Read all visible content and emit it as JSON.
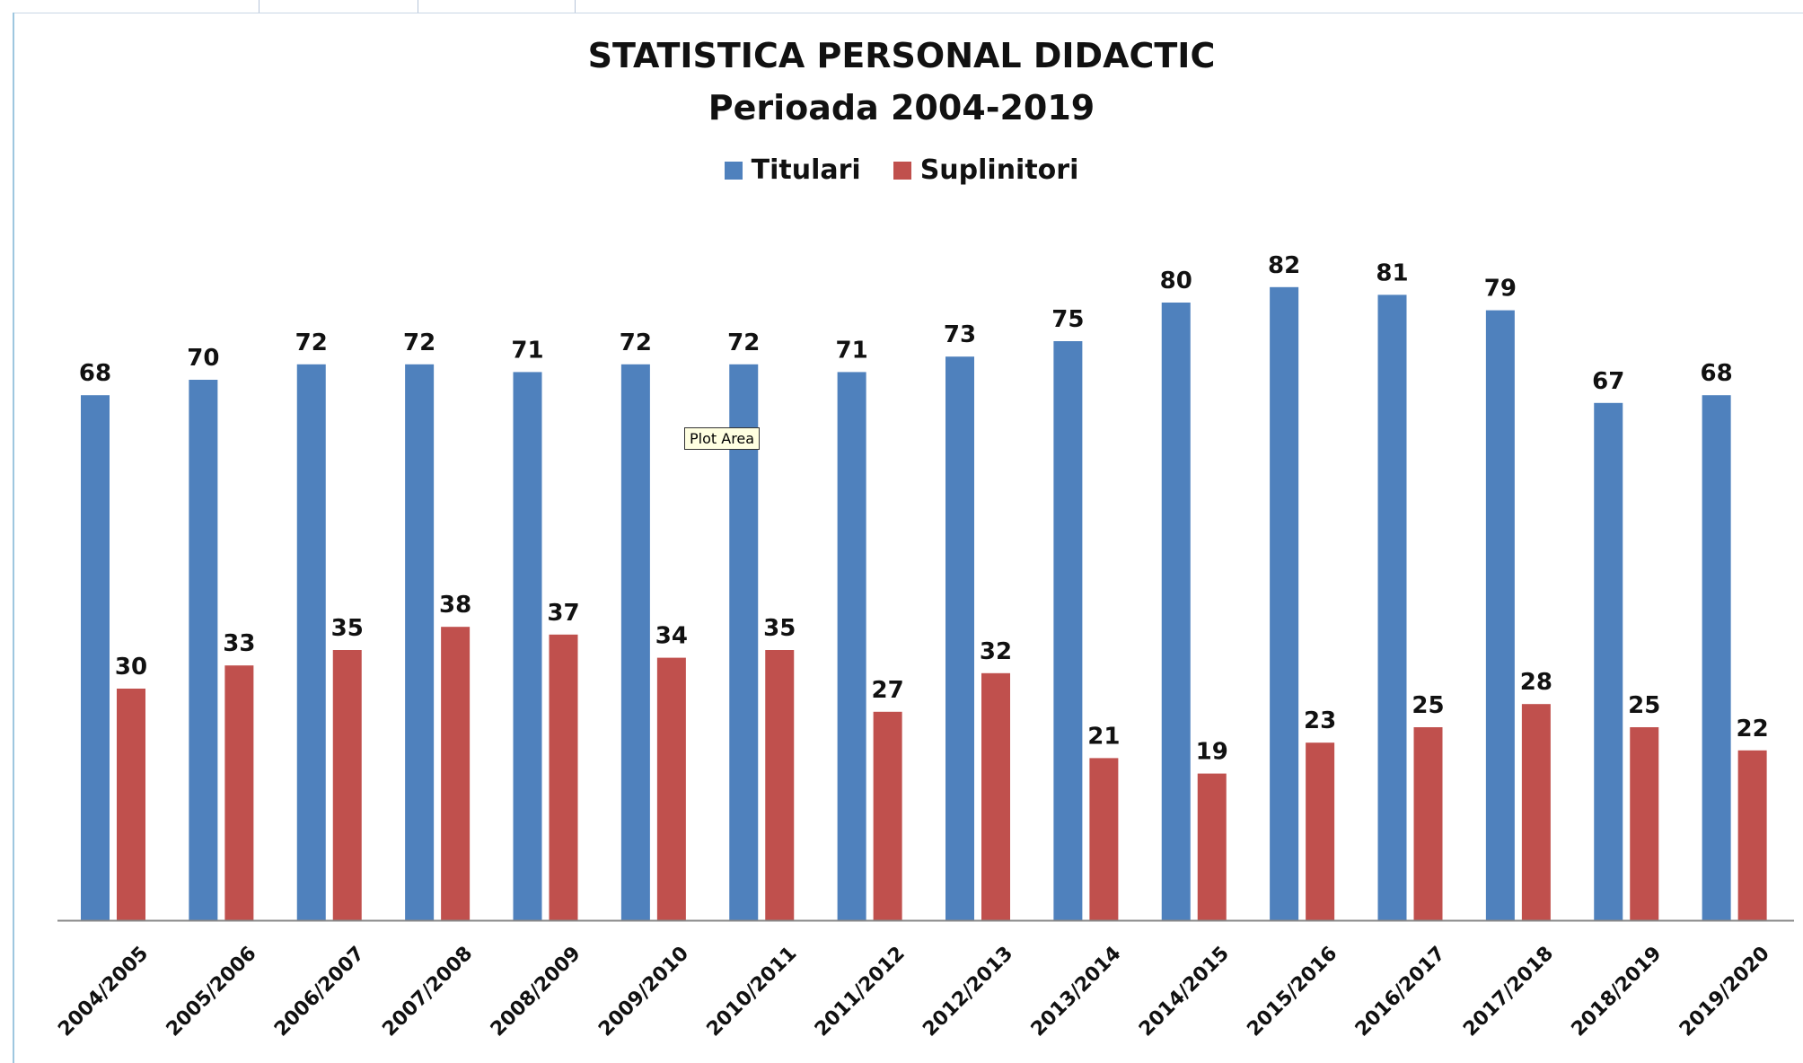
{
  "chart_data": {
    "type": "bar",
    "title": "STATISTICA PERSONAL DIDACTIC",
    "subtitle": "Perioada 2004-2019",
    "categories": [
      "2004/2005",
      "2005/2006",
      "2006/2007",
      "2007/2008",
      "2008/2009",
      "2009/2010",
      "2010/2011",
      "2011/2012",
      "2012/2013",
      "2013/2014",
      "2014/2015",
      "2015/2016",
      "2016/2017",
      "2017/2018",
      "2018/2019",
      "2019/2020"
    ],
    "series": [
      {
        "name": "Titulari",
        "color": "#4f81bd",
        "values": [
          68,
          70,
          72,
          72,
          71,
          72,
          72,
          71,
          73,
          75,
          80,
          82,
          81,
          79,
          67,
          68
        ]
      },
      {
        "name": "Suplinitori",
        "color": "#c0504d",
        "values": [
          30,
          33,
          35,
          38,
          37,
          34,
          35,
          27,
          32,
          21,
          19,
          23,
          25,
          28,
          25,
          22
        ]
      }
    ],
    "legend_position": "top",
    "grid": false,
    "data_labels": true,
    "ylim": [
      0,
      100
    ]
  },
  "tooltip": {
    "text": "Plot Area"
  }
}
